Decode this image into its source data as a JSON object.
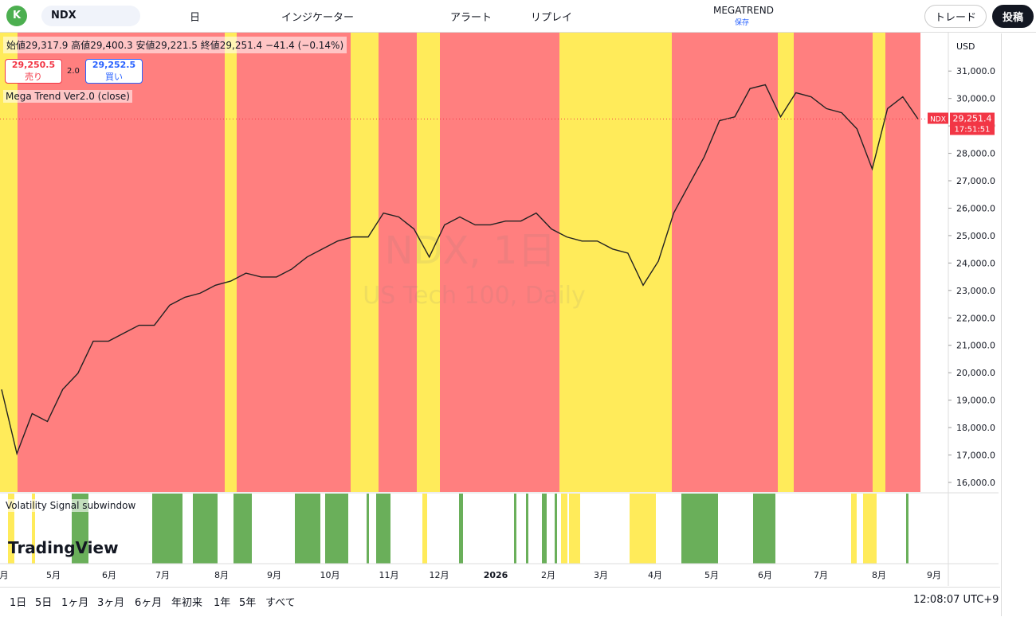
{
  "toolbar": {
    "avatar": "K",
    "symbol": "NDX",
    "interval": "日",
    "indicators": "インジケーター",
    "alert": "アラート",
    "replay": "リプレイ",
    "layout_name": "MEGATREND",
    "save": "保存",
    "trade": "トレード",
    "publish": "投稿"
  },
  "legend": {
    "ohlc": "始値29,317.9 高値29,400.3 安値29,221.5 終値29,251.4 −41.4 (−0.14%)",
    "sell_price": "29,250.5",
    "sell": "売り",
    "spread": "2.0",
    "buy_price": "29,252.5",
    "buy": "買い",
    "indicator": "Mega Trend Ver2.0 (close)",
    "subwindow": "Volatility Signal subwindow"
  },
  "watermark": {
    "title": "NDX, 1日",
    "subtitle": "US Tech 100, Daily"
  },
  "brand": "TradingView",
  "currency": "USD",
  "price_tag": {
    "symbol": "NDX",
    "price": "29,251.4",
    "countdown": "17:51:51"
  },
  "chart_data": {
    "type": "line",
    "color": "#222222",
    "values": [
      19390,
      17050,
      18510,
      18220,
      19390,
      19980,
      21150,
      21150,
      21440,
      21730,
      21730,
      22460,
      22750,
      22900,
      23190,
      23340,
      23630,
      23490,
      23490,
      23780,
      24220,
      24510,
      24800,
      24950,
      24950,
      25820,
      25680,
      25240,
      24220,
      25390,
      25680,
      25390,
      25390,
      25530,
      25530,
      25820,
      25240,
      24950,
      24800,
      24800,
      24510,
      24360,
      23190,
      24070,
      25820,
      26850,
      27870,
      29190,
      29330,
      30360,
      30500,
      29330,
      30210,
      30060,
      29630,
      29480,
      28890,
      27430,
      29630,
      30060,
      29250
    ],
    "ylim": [
      15650,
      32400
    ],
    "yticks": [
      {
        "value": 16000,
        "label": "16,000.0"
      },
      {
        "value": 17000,
        "label": "17,000.0"
      },
      {
        "value": 18000,
        "label": "18,000.0"
      },
      {
        "value": 19000,
        "label": "19,000.0"
      },
      {
        "value": 20000,
        "label": "20,000.0"
      },
      {
        "value": 21000,
        "label": "21,000.0"
      },
      {
        "value": 22000,
        "label": "22,000.0"
      },
      {
        "value": 23000,
        "label": "23,000.0"
      },
      {
        "value": 24000,
        "label": "24,000.0"
      },
      {
        "value": 25000,
        "label": "25,000.0"
      },
      {
        "value": 26000,
        "label": "26,000.0"
      },
      {
        "value": 27000,
        "label": "27,000.0"
      },
      {
        "value": 28000,
        "label": "28,000.0"
      },
      {
        "value": 29000,
        "label": "29,000.0"
      },
      {
        "value": 30000,
        "label": "30,000.0"
      },
      {
        "value": 31000,
        "label": "31,000.0"
      }
    ],
    "x_tick_labels": [
      "月",
      "5月",
      "6月",
      "7月",
      "8月",
      "9月",
      "10月",
      "11月",
      "12月",
      "2026",
      "2月",
      "3月",
      "4月",
      "5月",
      "6月",
      "7月",
      "8月",
      "9月"
    ]
  },
  "bottom": {
    "ranges": [
      "1日",
      "5日",
      "1ヶ月",
      "3ヶ月",
      "6ヶ月",
      "年初来",
      "1年",
      "5年",
      "すべて"
    ],
    "clock": "12:08:07 UTC+9"
  }
}
